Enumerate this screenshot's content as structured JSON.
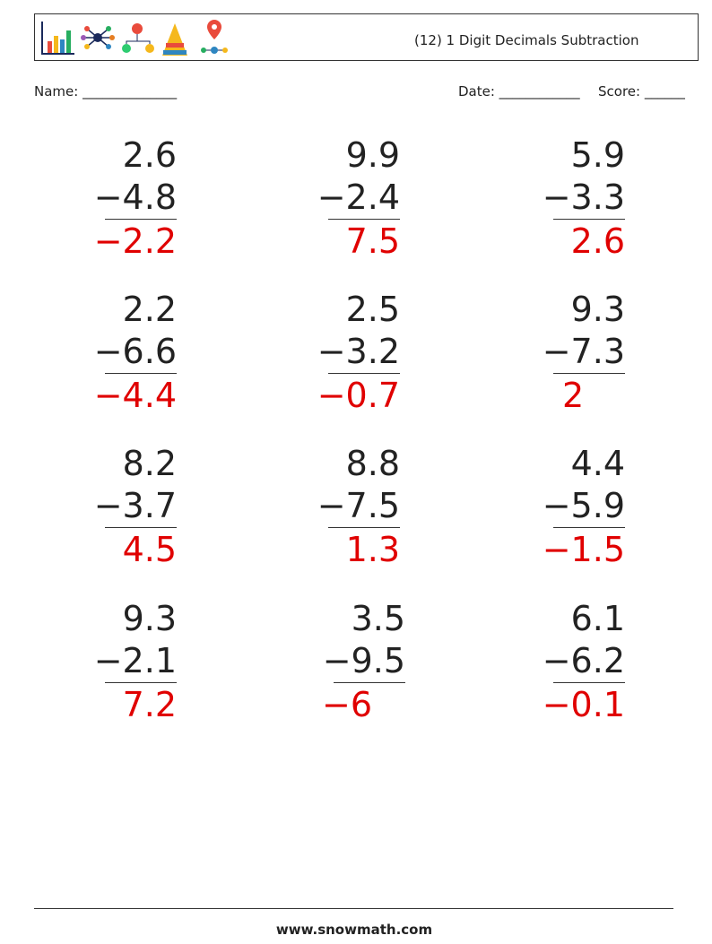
{
  "header": {
    "title": "(12) 1 Digit Decimals Subtraction"
  },
  "fields": {
    "name": "Name: ______________",
    "date": "Date: ____________",
    "score": "Score: ______"
  },
  "problems": [
    {
      "top": "2.6",
      "bottom": "−4.8",
      "answer": "−2.2"
    },
    {
      "top": "9.9",
      "bottom": "−2.4",
      "answer": "7.5"
    },
    {
      "top": "5.9",
      "bottom": "−3.3",
      "answer": "2.6"
    },
    {
      "top": "2.2",
      "bottom": "−6.6",
      "answer": "−4.4"
    },
    {
      "top": "2.5",
      "bottom": "−3.2",
      "answer": "−0.7"
    },
    {
      "top": "9.3",
      "bottom": "−7.3",
      "answer": "2"
    },
    {
      "top": "8.2",
      "bottom": "−3.7",
      "answer": "4.5"
    },
    {
      "top": "8.8",
      "bottom": "−7.5",
      "answer": "1.3"
    },
    {
      "top": "4.4",
      "bottom": "−5.9",
      "answer": "−1.5"
    },
    {
      "top": "9.3",
      "bottom": "−2.1",
      "answer": "7.2"
    },
    {
      "top": "3.5",
      "bottom": "−9.5",
      "answer": "−6"
    },
    {
      "top": "6.1",
      "bottom": "−6.2",
      "answer": "−0.1"
    }
  ],
  "footer": {
    "site": "www.snowmath.com"
  }
}
